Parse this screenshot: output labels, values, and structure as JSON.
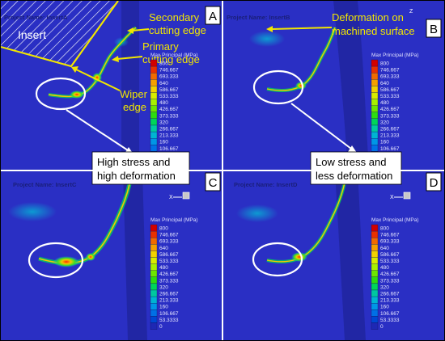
{
  "colors": {
    "background": "#2a2fc4",
    "ann_yellow": "#f2e600",
    "white": "#ffffff"
  },
  "panels": [
    {
      "letter": "A",
      "project": "Project Name: InsertA"
    },
    {
      "letter": "B",
      "project": "Project Name: InsertB"
    },
    {
      "letter": "C",
      "project": "Project Name: InsertC"
    },
    {
      "letter": "D",
      "project": "Project Name: InsertD"
    }
  ],
  "legend": {
    "title": "Max Principal (MPa)",
    "values": [
      "800",
      "746.667",
      "693.333",
      "640",
      "586.667",
      "533.333",
      "480",
      "426.667",
      "373.333",
      "320",
      "266.667",
      "213.333",
      "160",
      "106.667",
      "53.3333",
      "0"
    ],
    "colors": [
      "#d20000",
      "#e83000",
      "#f06a00",
      "#f5a000",
      "#f2d200",
      "#d8ec00",
      "#a8f000",
      "#6ee600",
      "#2edc10",
      "#00d45a",
      "#00c8a0",
      "#00b4d2",
      "#0096e6",
      "#0070e6",
      "#0046d2",
      "#1e28b4"
    ]
  },
  "annotations": {
    "insert": "Insert",
    "secondary": [
      "Secondary",
      "cutting edge"
    ],
    "primary": [
      "Primary",
      "cutting edge"
    ],
    "wiper": [
      "Wiper",
      "edge"
    ],
    "deformation": [
      "Deformation on",
      "machined surface"
    ],
    "box_c": [
      "High stress and",
      "high deformation"
    ],
    "box_d": [
      "Low stress and",
      "less deformation"
    ]
  },
  "axis_labels": {
    "x": "X",
    "y": "Y",
    "z": "Z"
  }
}
